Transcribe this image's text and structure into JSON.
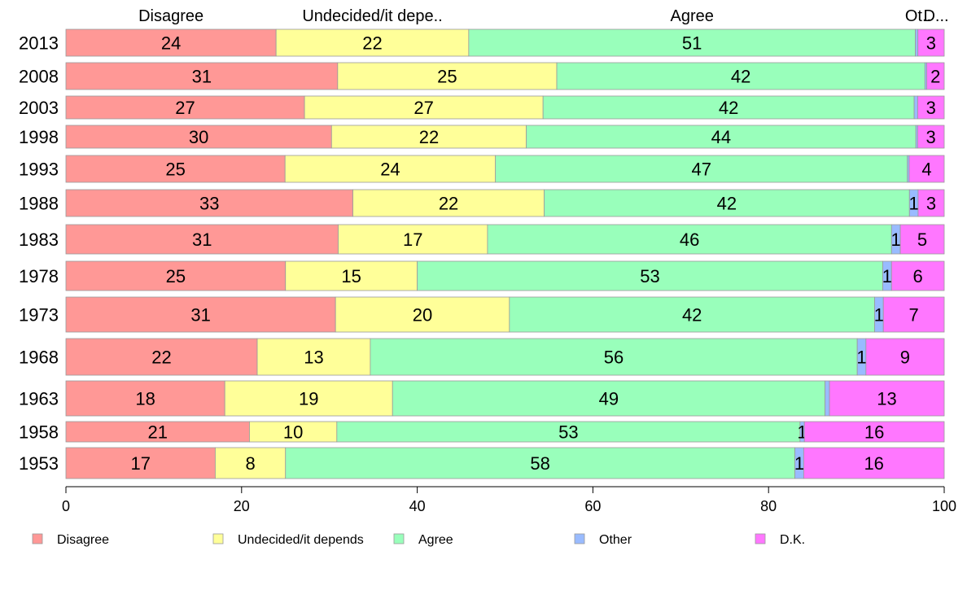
{
  "chart_data": {
    "type": "bar",
    "orientation": "horizontal",
    "stacked": true,
    "categories": [
      "2013",
      "2008",
      "2003",
      "1998",
      "1993",
      "1988",
      "1983",
      "1978",
      "1973",
      "1968",
      "1963",
      "1958",
      "1953"
    ],
    "series": [
      {
        "name": "Disagree",
        "color": "#ff9896",
        "values": [
          24,
          31,
          27,
          30,
          25,
          33,
          31,
          25,
          31,
          22,
          18,
          21,
          17
        ]
      },
      {
        "name": "Undecided/it depends",
        "color": "#ffff99",
        "values": [
          22,
          25,
          27,
          22,
          24,
          22,
          17,
          15,
          20,
          13,
          19,
          10,
          8
        ]
      },
      {
        "name": "Agree",
        "color": "#99ffbb",
        "values": [
          51,
          42,
          42,
          44,
          47,
          42,
          46,
          53,
          42,
          56,
          49,
          53,
          58
        ]
      },
      {
        "name": "Other",
        "color": "#99bbff",
        "values": [
          0.3,
          0.2,
          0.4,
          0.2,
          0.2,
          1,
          1,
          1,
          1,
          1,
          0.5,
          0.5,
          1
        ]
      },
      {
        "name": "D.K.",
        "color": "#ff77ff",
        "values": [
          3,
          2,
          3,
          3,
          4,
          3,
          5,
          6,
          7,
          9,
          13,
          16,
          16
        ]
      }
    ],
    "data_labels": [
      [
        "24",
        "22",
        "51",
        "",
        "3"
      ],
      [
        "31",
        "25",
        "42",
        "",
        "2"
      ],
      [
        "27",
        "27",
        "42",
        "",
        "3"
      ],
      [
        "30",
        "22",
        "44",
        "",
        "3"
      ],
      [
        "25",
        "24",
        "47",
        "",
        "4"
      ],
      [
        "33",
        "22",
        "42",
        "1",
        "3"
      ],
      [
        "31",
        "17",
        "46",
        "1",
        "5"
      ],
      [
        "25",
        "15",
        "53",
        "1",
        "6"
      ],
      [
        "31",
        "20",
        "42",
        "1",
        "7"
      ],
      [
        "22",
        "13",
        "56",
        "1",
        "9"
      ],
      [
        "18",
        "19",
        "49",
        "",
        "13"
      ],
      [
        "21",
        "10",
        "53",
        "1",
        "16"
      ],
      [
        "17",
        "8",
        "58",
        "1",
        "16"
      ]
    ],
    "top_labels": [
      "Disagree",
      "Undecided/it depe..",
      "Agree",
      "Ot..",
      "D..."
    ],
    "xlim": [
      0,
      100
    ],
    "xticks": [
      "0",
      "20",
      "40",
      "60",
      "80",
      "100"
    ],
    "legend": {
      "placement": "bottom",
      "entries": [
        "Disagree",
        "Undecided/it depends",
        "Agree",
        "Other",
        "D.K."
      ]
    },
    "grid": false
  }
}
